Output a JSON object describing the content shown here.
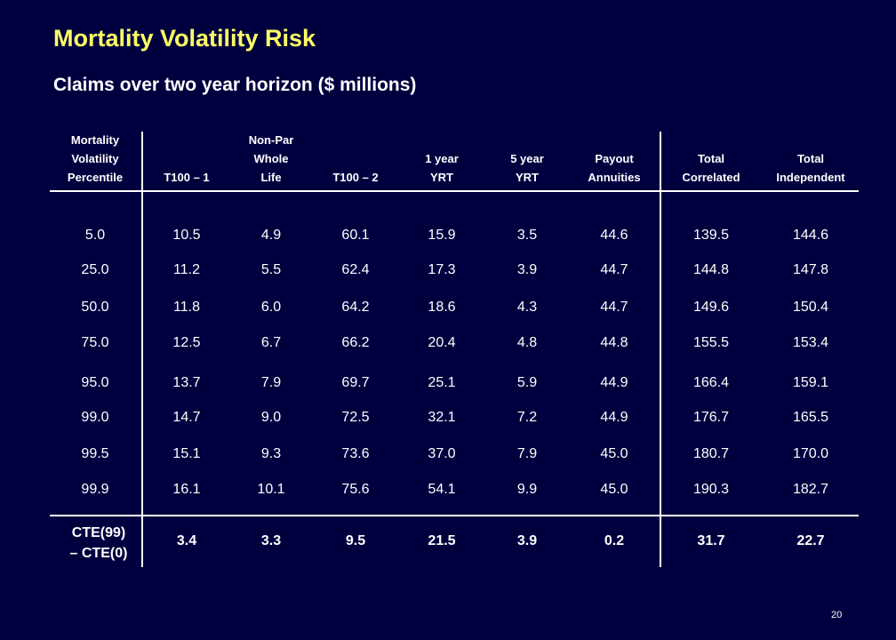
{
  "title": "Mortality Volatility Risk",
  "subtitle": "Claims over two year horizon ($ millions)",
  "columns": [
    [
      "Mortality",
      "Volatility",
      "Percentile"
    ],
    [
      "T100 – 1"
    ],
    [
      "Non-Par",
      "Whole",
      "Life"
    ],
    [
      "T100 – 2"
    ],
    [
      "1 year",
      "YRT"
    ],
    [
      "5 year",
      "YRT"
    ],
    [
      "Payout",
      "Annuities"
    ],
    [
      "Total",
      "Correlated"
    ],
    [
      "Total",
      "Independent"
    ]
  ],
  "rows": [
    [
      "5.0",
      "10.5",
      "4.9",
      "60.1",
      "15.9",
      "3.5",
      "44.6",
      "139.5",
      "144.6"
    ],
    [
      "25.0",
      "11.2",
      "5.5",
      "62.4",
      "17.3",
      "3.9",
      "44.7",
      "144.8",
      "147.8"
    ],
    [
      "50.0",
      "11.8",
      "6.0",
      "64.2",
      "18.6",
      "4.3",
      "44.7",
      "149.6",
      "150.4"
    ],
    [
      "75.0",
      "12.5",
      "6.7",
      "66.2",
      "20.4",
      "4.8",
      "44.8",
      "155.5",
      "153.4"
    ],
    [
      "95.0",
      "13.7",
      "7.9",
      "69.7",
      "25.1",
      "5.9",
      "44.9",
      "166.4",
      "159.1"
    ],
    [
      "99.0",
      "14.7",
      "9.0",
      "72.5",
      "32.1",
      "7.2",
      "44.9",
      "176.7",
      "165.5"
    ],
    [
      "99.5",
      "15.1",
      "9.3",
      "73.6",
      "37.0",
      "7.9",
      "45.0",
      "180.7",
      "170.0"
    ],
    [
      "99.9",
      "16.1",
      "10.1",
      "75.6",
      "54.1",
      "9.9",
      "45.0",
      "190.3",
      "182.7"
    ]
  ],
  "cte": {
    "label": [
      "CTE(99)",
      "– CTE(0)"
    ],
    "values": [
      "3.4",
      "3.3",
      "9.5",
      "21.5",
      "3.9",
      "0.2",
      "31.7",
      "22.7"
    ]
  },
  "page_number": "20"
}
